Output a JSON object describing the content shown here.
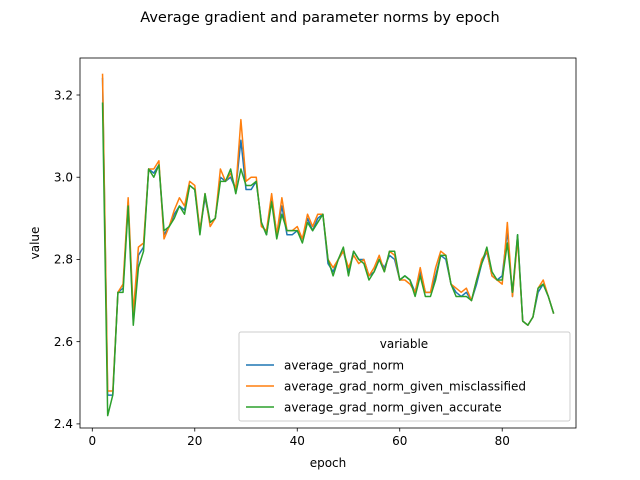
{
  "chart_data": {
    "type": "line",
    "title": "Average gradient and parameter norms by epoch",
    "xlabel": "epoch",
    "ylabel": "value",
    "xlim": [
      -2.4,
      94.4
    ],
    "ylim": [
      2.39,
      3.29
    ],
    "xticks": [
      0,
      20,
      40,
      60,
      80
    ],
    "yticks": [
      2.4,
      2.6,
      2.8,
      3.0,
      3.2
    ],
    "grid": false,
    "legend": {
      "title": "variable",
      "placement": "lower-right"
    },
    "x": [
      2,
      3,
      4,
      5,
      6,
      7,
      8,
      9,
      10,
      11,
      12,
      13,
      14,
      15,
      16,
      17,
      18,
      19,
      20,
      21,
      22,
      23,
      24,
      25,
      26,
      27,
      28,
      29,
      30,
      31,
      32,
      33,
      34,
      35,
      36,
      37,
      38,
      39,
      40,
      41,
      42,
      43,
      44,
      45,
      46,
      47,
      48,
      49,
      50,
      51,
      52,
      53,
      54,
      55,
      56,
      57,
      58,
      59,
      60,
      61,
      62,
      63,
      64,
      65,
      66,
      67,
      68,
      69,
      70,
      71,
      72,
      73,
      74,
      75,
      76,
      77,
      78,
      79,
      80,
      81,
      82,
      83,
      84,
      85,
      86,
      87,
      88,
      89,
      90
    ],
    "series": [
      {
        "name": "average_grad_norm",
        "color": "#1f77b4",
        "values": [
          3.24,
          2.47,
          2.47,
          2.72,
          2.73,
          2.94,
          2.65,
          2.81,
          2.83,
          3.02,
          3.01,
          3.03,
          2.86,
          2.88,
          2.91,
          2.93,
          2.92,
          2.98,
          2.97,
          2.87,
          2.95,
          2.89,
          2.9,
          3.0,
          2.99,
          3.0,
          2.97,
          3.09,
          2.97,
          2.97,
          2.99,
          2.89,
          2.86,
          2.95,
          2.86,
          2.93,
          2.86,
          2.86,
          2.87,
          2.85,
          2.9,
          2.87,
          2.9,
          2.91,
          2.79,
          2.77,
          2.8,
          2.82,
          2.77,
          2.82,
          2.8,
          2.8,
          2.76,
          2.77,
          2.8,
          2.78,
          2.81,
          2.8,
          2.75,
          2.76,
          2.75,
          2.72,
          2.77,
          2.72,
          2.72,
          2.76,
          2.81,
          2.8,
          2.74,
          2.72,
          2.71,
          2.72,
          2.7,
          2.74,
          2.79,
          2.82,
          2.76,
          2.75,
          2.76,
          2.87,
          2.71,
          2.86,
          2.65,
          2.64,
          2.66,
          2.72,
          2.74,
          2.71,
          2.67
        ]
      },
      {
        "name": "average_grad_norm_given_misclassified",
        "color": "#ff7f0e",
        "values": [
          3.25,
          2.48,
          2.48,
          2.72,
          2.74,
          2.95,
          2.67,
          2.83,
          2.84,
          3.02,
          3.02,
          3.04,
          2.85,
          2.88,
          2.92,
          2.95,
          2.93,
          2.99,
          2.98,
          2.87,
          2.96,
          2.88,
          2.9,
          3.02,
          2.99,
          3.01,
          2.97,
          3.14,
          2.99,
          3.0,
          3.0,
          2.88,
          2.87,
          2.96,
          2.86,
          2.95,
          2.87,
          2.87,
          2.88,
          2.85,
          2.91,
          2.88,
          2.91,
          2.91,
          2.8,
          2.78,
          2.8,
          2.82,
          2.78,
          2.81,
          2.79,
          2.8,
          2.76,
          2.78,
          2.81,
          2.77,
          2.82,
          2.81,
          2.75,
          2.75,
          2.74,
          2.72,
          2.78,
          2.72,
          2.72,
          2.78,
          2.82,
          2.81,
          2.74,
          2.73,
          2.72,
          2.73,
          2.7,
          2.75,
          2.8,
          2.82,
          2.76,
          2.75,
          2.74,
          2.89,
          2.71,
          2.85,
          2.65,
          2.64,
          2.66,
          2.73,
          2.75,
          2.71,
          2.67
        ]
      },
      {
        "name": "average_grad_norm_given_accurate",
        "color": "#2ca02c",
        "values": [
          3.18,
          2.42,
          2.47,
          2.72,
          2.72,
          2.93,
          2.64,
          2.78,
          2.82,
          3.02,
          3.0,
          3.03,
          2.87,
          2.88,
          2.9,
          2.93,
          2.91,
          2.98,
          2.97,
          2.86,
          2.96,
          2.89,
          2.9,
          2.99,
          2.99,
          3.02,
          2.96,
          3.02,
          2.98,
          2.98,
          2.99,
          2.89,
          2.86,
          2.94,
          2.85,
          2.91,
          2.87,
          2.87,
          2.87,
          2.84,
          2.89,
          2.87,
          2.89,
          2.91,
          2.8,
          2.76,
          2.8,
          2.83,
          2.76,
          2.82,
          2.8,
          2.79,
          2.75,
          2.77,
          2.8,
          2.77,
          2.82,
          2.82,
          2.75,
          2.76,
          2.75,
          2.71,
          2.76,
          2.71,
          2.71,
          2.75,
          2.81,
          2.81,
          2.74,
          2.71,
          2.71,
          2.71,
          2.7,
          2.75,
          2.79,
          2.83,
          2.77,
          2.75,
          2.75,
          2.84,
          2.72,
          2.86,
          2.65,
          2.64,
          2.66,
          2.73,
          2.74,
          2.71,
          2.67
        ]
      }
    ]
  }
}
